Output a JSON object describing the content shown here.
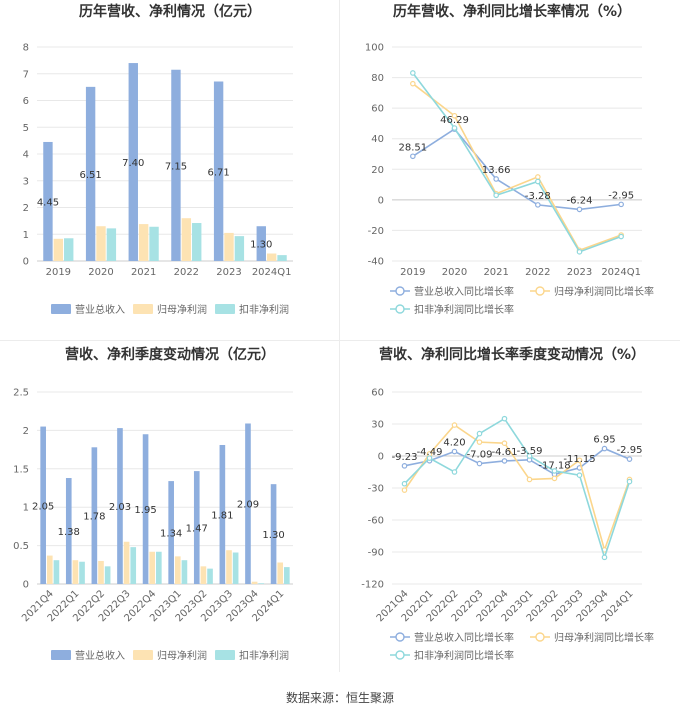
{
  "source_label": "数据来源：恒生聚源",
  "colors": {
    "revenue": "#8eaede",
    "parent_profit": "#fde3b3",
    "deduct_profit": "#a7e2e4",
    "rev_line": "#8eaede",
    "parent_line": "#fbd68c",
    "deduct_line": "#8ed8dc",
    "grid": "#e8e8e8",
    "axis_text": "#666666",
    "label_text": "#333333"
  },
  "chart_data": [
    {
      "id": "annual_amount",
      "type": "bar",
      "title": "历年营收、净利情况（亿元）",
      "categories": [
        "2019",
        "2020",
        "2021",
        "2022",
        "2023",
        "2024Q1"
      ],
      "ylim": [
        0,
        8
      ],
      "yticks": [
        "0",
        "1",
        "2",
        "3",
        "4",
        "5",
        "6",
        "7",
        "8"
      ],
      "series": [
        {
          "name": "营业总收入",
          "values": [
            4.45,
            6.51,
            7.4,
            7.15,
            6.71,
            1.3
          ],
          "labels": [
            "4.45",
            "6.51",
            "7.40",
            "7.15",
            "6.71",
            "1.30"
          ]
        },
        {
          "name": "归母净利润",
          "values": [
            0.83,
            1.3,
            1.38,
            1.6,
            1.05,
            0.28
          ]
        },
        {
          "name": "扣非净利润",
          "values": [
            0.85,
            1.22,
            1.28,
            1.42,
            0.93,
            0.22
          ]
        }
      ]
    },
    {
      "id": "annual_growth",
      "type": "line",
      "title": "历年营收、净利同比增长率情况（%）",
      "categories": [
        "2019",
        "2020",
        "2021",
        "2022",
        "2023",
        "2024Q1"
      ],
      "ylim": [
        -40,
        100
      ],
      "yticks": [
        "-40",
        "-20",
        "0",
        "20",
        "40",
        "60",
        "80",
        "100"
      ],
      "series": [
        {
          "name": "营业总收入同比增长率",
          "values": [
            28.51,
            46.29,
            13.66,
            -3.28,
            -6.24,
            -2.95
          ],
          "labels": [
            "28.51",
            "46.29",
            "13.66",
            "-3.28",
            "-6.24",
            "-2.95"
          ]
        },
        {
          "name": "归母净利润同比增长率",
          "values": [
            76,
            55,
            4,
            15,
            -33,
            -23
          ]
        },
        {
          "name": "扣非净利润同比增长率",
          "values": [
            83,
            47,
            3,
            12,
            -34,
            -24
          ]
        }
      ]
    },
    {
      "id": "quarterly_amount",
      "type": "bar",
      "title": "营收、净利季度变动情况（亿元）",
      "categories": [
        "2021Q4",
        "2022Q1",
        "2022Q2",
        "2022Q3",
        "2022Q4",
        "2023Q1",
        "2023Q2",
        "2023Q3",
        "2023Q4",
        "2024Q1"
      ],
      "ylim": [
        0,
        2.5
      ],
      "yticks": [
        "0",
        "0.5",
        "1",
        "1.5",
        "2",
        "2.5"
      ],
      "series": [
        {
          "name": "营业总收入",
          "values": [
            2.05,
            1.38,
            1.78,
            2.03,
            1.95,
            1.34,
            1.47,
            1.81,
            2.09,
            1.3
          ],
          "labels": [
            "2.05",
            "1.38",
            "1.78",
            "2.03",
            "1.95",
            "1.34",
            "1.47",
            "1.81",
            "2.09",
            "1.30"
          ]
        },
        {
          "name": "归母净利润",
          "values": [
            0.37,
            0.31,
            0.3,
            0.55,
            0.42,
            0.36,
            0.23,
            0.44,
            0.03,
            0.28
          ]
        },
        {
          "name": "扣非净利润",
          "values": [
            0.31,
            0.29,
            0.23,
            0.48,
            0.42,
            0.31,
            0.2,
            0.41,
            0.01,
            0.22
          ]
        }
      ]
    },
    {
      "id": "quarterly_growth",
      "type": "line",
      "title": "营收、净利同比增长率季度变动情况（%）",
      "categories": [
        "2021Q4",
        "2022Q1",
        "2022Q2",
        "2022Q3",
        "2022Q4",
        "2023Q1",
        "2023Q2",
        "2023Q3",
        "2023Q4",
        "2024Q1"
      ],
      "ylim": [
        -120,
        60
      ],
      "yticks": [
        "-120",
        "-90",
        "-60",
        "-30",
        "0",
        "30",
        "60"
      ],
      "series": [
        {
          "name": "营业总收入同比增长率",
          "values": [
            -9.23,
            -4.49,
            4.2,
            -7.09,
            -4.61,
            -3.59,
            -17.18,
            -11.15,
            6.95,
            -2.95
          ],
          "labels": [
            "-9.23",
            "-4.49",
            "4.20",
            "-7.09",
            "-4.61",
            "-3.59",
            "-17.18",
            "-11.15",
            "6.95",
            "-2.95"
          ]
        },
        {
          "name": "归母净利润同比增长率",
          "values": [
            -32,
            2,
            29,
            13,
            12,
            -22,
            -21,
            -4,
            -88,
            -22
          ]
        },
        {
          "name": "扣非净利润同比增长率",
          "values": [
            -26,
            -2,
            -15,
            21,
            35,
            0,
            -14,
            -18,
            -95,
            -24
          ]
        }
      ]
    }
  ]
}
